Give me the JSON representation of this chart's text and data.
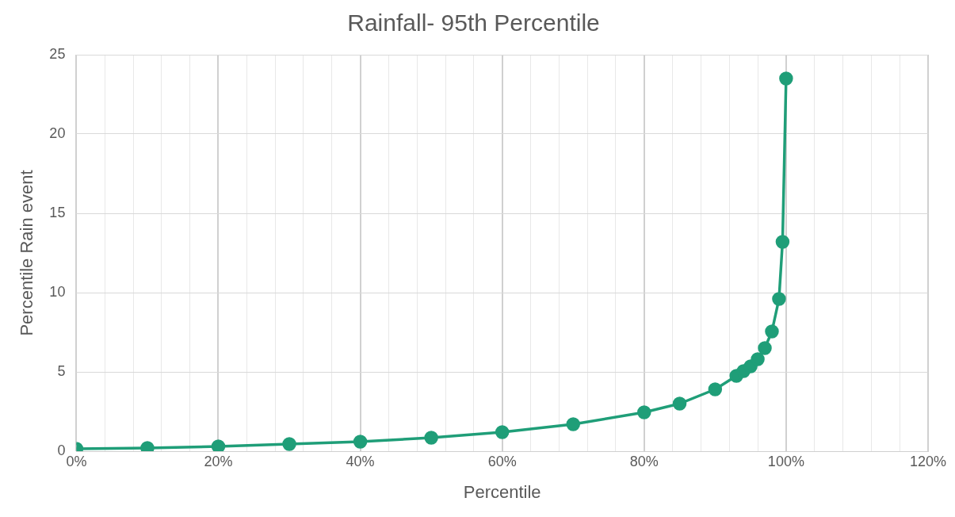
{
  "chart_data": {
    "type": "line",
    "title": "Rainfall- 95th Percentile",
    "xlabel": "Percentile",
    "ylabel": "Percentile Rain event",
    "x": [
      0,
      10,
      20,
      30,
      40,
      50,
      60,
      70,
      80,
      85,
      90,
      93,
      94,
      95,
      96,
      97,
      98,
      99,
      99.5,
      100
    ],
    "series": [
      {
        "color": "#1f9e78",
        "values": [
          0.15,
          0.2,
          0.3,
          0.45,
          0.6,
          0.85,
          1.2,
          1.7,
          2.45,
          3.0,
          3.9,
          4.75,
          5.05,
          5.35,
          5.8,
          6.5,
          7.55,
          9.6,
          13.2,
          23.5
        ]
      }
    ],
    "xlim": [
      0,
      120
    ],
    "xticks": [
      {
        "value": 0,
        "label": "0%"
      },
      {
        "value": 4,
        "label": null
      },
      {
        "value": 8,
        "label": null
      },
      {
        "value": 12,
        "label": null
      },
      {
        "value": 16,
        "label": null
      },
      {
        "value": 20,
        "label": "20%"
      },
      {
        "value": 24,
        "label": null
      },
      {
        "value": 28,
        "label": null
      },
      {
        "value": 32,
        "label": null
      },
      {
        "value": 36,
        "label": null
      },
      {
        "value": 40,
        "label": "40%"
      },
      {
        "value": 44,
        "label": null
      },
      {
        "value": 48,
        "label": null
      },
      {
        "value": 52,
        "label": null
      },
      {
        "value": 56,
        "label": null
      },
      {
        "value": 60,
        "label": "60%"
      },
      {
        "value": 64,
        "label": null
      },
      {
        "value": 68,
        "label": null
      },
      {
        "value": 72,
        "label": null
      },
      {
        "value": 76,
        "label": null
      },
      {
        "value": 80,
        "label": "80%"
      },
      {
        "value": 84,
        "label": null
      },
      {
        "value": 88,
        "label": null
      },
      {
        "value": 92,
        "label": null
      },
      {
        "value": 96,
        "label": null
      },
      {
        "value": 100,
        "label": "100%"
      },
      {
        "value": 104,
        "label": null
      },
      {
        "value": 108,
        "label": null
      },
      {
        "value": 112,
        "label": null
      },
      {
        "value": 116,
        "label": null
      },
      {
        "value": 120,
        "label": "120%"
      }
    ],
    "ylim": [
      0,
      25
    ],
    "yticks": [
      0,
      5,
      10,
      15,
      20,
      25
    ],
    "grid": true,
    "legend": false,
    "marker": "circle",
    "line_style": "solid"
  }
}
